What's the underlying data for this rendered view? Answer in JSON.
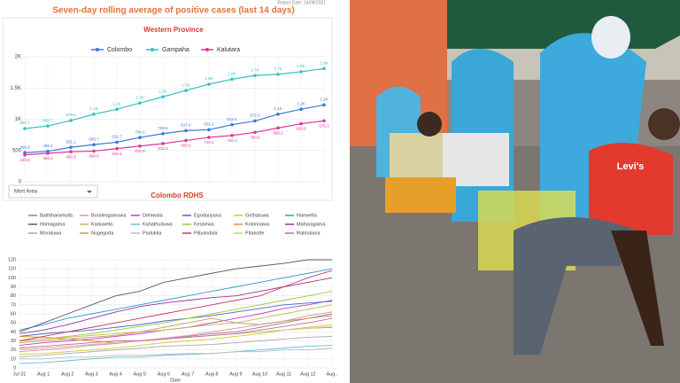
{
  "chart_data": [
    {
      "type": "line",
      "title": "Seven-day rolling average of positive cases (last 14 days)",
      "report_date": "Report Date: 14/08/2021",
      "subtitle": "Western Province",
      "filter": "Mort Area",
      "ylim": [
        0,
        2000
      ],
      "yticks": [
        0,
        500,
        {
          "value": 1000,
          "label": "1K"
        },
        {
          "value": 1500,
          "label": "1.5K"
        },
        {
          "value": 2000,
          "label": "2K"
        }
      ],
      "grid": true,
      "legend": "top",
      "series": [
        {
          "name": "Colombo",
          "color": "#3b78d8",
          "values": [
            466.8,
            486.4,
            551.1,
            593.7,
            632.7,
            708.1,
            769.6,
            817.6,
            832.1,
            912.4,
            972.9,
            1080,
            1160,
            1230
          ],
          "value_labels": [
            "466.8",
            "486.4",
            "551.1",
            "593.7",
            "632.7",
            "708.1",
            "769.6",
            "817.6",
            "832.1",
            "912.4",
            "972.9",
            "1.1K",
            "1.2K",
            "1.2K"
          ]
        },
        {
          "name": "Gampaha",
          "color": "#33c3bd",
          "values": [
            850.7,
            892.7,
            979.6,
            1080,
            1160,
            1260,
            1360,
            1460,
            1560,
            1640,
            1700,
            1720,
            1760,
            1810
          ],
          "value_labels": [
            "850.7",
            "892.7",
            "979.6",
            "1.1K",
            "1.2K",
            "1.3K",
            "1.4K",
            "1.5K",
            "1.6K",
            "1.6K",
            "1.7K",
            "1.7K",
            "1.8K",
            "1.8K"
          ]
        },
        {
          "name": "Kalutara",
          "color": "#e0359b",
          "values": [
            430.8,
            455.2,
            480.3,
            490.6,
            530.4,
            570.9,
            610.2,
            660.5,
            710.1,
            740.3,
            790.6,
            860.2,
            928.6,
            975.3
          ],
          "value_labels": [
            "430.8",
            "455.2",
            "480.3",
            "490.6",
            "530.4",
            "570.9",
            "610.2",
            "660.5",
            "710.1",
            "740.3",
            "790.6",
            "860.2",
            "928.6",
            "975.3"
          ]
        }
      ]
    },
    {
      "type": "line",
      "title": "Colombo RDHS",
      "x_label": "Date",
      "legend": "top",
      "grid": true,
      "categories": [
        "Jul 31",
        "Aug 1",
        "Aug 2",
        "Aug 3",
        "Aug 4",
        "Aug 5",
        "Aug 6",
        "Aug 7",
        "Aug 8",
        "Aug 9",
        "Aug 10",
        "Aug 11",
        "Aug 12",
        "Aug.."
      ],
      "ylim": [
        0,
        120
      ],
      "yticks": [
        0,
        10,
        20,
        30,
        40,
        50,
        60,
        70,
        80,
        90,
        100,
        110,
        120
      ],
      "series": [
        {
          "name": "Baththaramulla",
          "color": "#888888",
          "values": [
            20,
            22,
            24,
            26,
            28,
            30,
            32,
            35,
            38,
            40,
            45,
            50,
            55,
            60
          ]
        },
        {
          "name": "Boralesgamuwa",
          "color": "#e88aa8",
          "values": [
            18,
            20,
            22,
            25,
            27,
            30,
            33,
            36,
            40,
            44,
            48,
            52,
            58,
            62
          ]
        },
        {
          "name": "Dehiwala",
          "color": "#c63cc6",
          "values": [
            25,
            28,
            30,
            32,
            35,
            38,
            42,
            45,
            50,
            55,
            60,
            66,
            70,
            75
          ]
        },
        {
          "name": "Egodauyana",
          "color": "#4466cc",
          "values": [
            35,
            38,
            40,
            42,
            45,
            48,
            52,
            55,
            58,
            62,
            66,
            70,
            72,
            74
          ]
        },
        {
          "name": "Gothatuwa",
          "color": "#cccc33",
          "values": [
            15,
            16,
            18,
            20,
            22,
            25,
            28,
            30,
            32,
            35,
            38,
            42,
            45,
            48
          ]
        },
        {
          "name": "Hanwella",
          "color": "#3399cc",
          "values": [
            42,
            48,
            55,
            60,
            65,
            70,
            75,
            80,
            85,
            90,
            95,
            100,
            105,
            110
          ]
        },
        {
          "name": "Homagama",
          "color": "#555577",
          "values": [
            40,
            50,
            60,
            70,
            80,
            85,
            95,
            100,
            105,
            110,
            113,
            116,
            120,
            120
          ]
        },
        {
          "name": "Kaduwela",
          "color": "#bbbb55",
          "values": [
            30,
            32,
            34,
            36,
            38,
            40,
            42,
            45,
            48,
            50,
            55,
            60,
            65,
            70
          ]
        },
        {
          "name": "Kahathuduwa",
          "color": "#66bbdd",
          "values": [
            5,
            6,
            8,
            10,
            12,
            12,
            14,
            15,
            16,
            18,
            20,
            22,
            24,
            25
          ]
        },
        {
          "name": "Kesbewa",
          "color": "#99cc33",
          "values": [
            30,
            32,
            35,
            38,
            42,
            46,
            50,
            55,
            60,
            65,
            70,
            75,
            80,
            85
          ]
        },
        {
          "name": "Kolonnawa",
          "color": "#ee8833",
          "values": [
            35,
            34,
            32,
            30,
            28,
            30,
            32,
            34,
            36,
            38,
            40,
            42,
            44,
            45
          ]
        },
        {
          "name": "Maharagama",
          "color": "#993399",
          "values": [
            38,
            42,
            48,
            55,
            62,
            68,
            72,
            75,
            78,
            80,
            85,
            90,
            95,
            100
          ]
        },
        {
          "name": "Moratuwa",
          "color": "#aaaaaa",
          "values": [
            12,
            14,
            16,
            18,
            20,
            22,
            24,
            25,
            26,
            28,
            30,
            32,
            34,
            35
          ]
        },
        {
          "name": "Nugegoda",
          "color": "#cc9966",
          "values": [
            28,
            30,
            32,
            34,
            36,
            40,
            45,
            50,
            55,
            50,
            48,
            52,
            55,
            58
          ]
        },
        {
          "name": "Padukka",
          "color": "#bbbbbb",
          "values": [
            10,
            10,
            12,
            12,
            14,
            14,
            15,
            16,
            16,
            18,
            18,
            20,
            20,
            22
          ]
        },
        {
          "name": "Piliyandala",
          "color": "#cc3366",
          "values": [
            30,
            35,
            40,
            45,
            50,
            55,
            60,
            65,
            70,
            75,
            80,
            90,
            100,
            108
          ]
        },
        {
          "name": "Pitakotte",
          "color": "#cccc99",
          "values": [
            20,
            22,
            24,
            26,
            28,
            30,
            32,
            34,
            36,
            38,
            40,
            42,
            44,
            46
          ]
        },
        {
          "name": "Ratmalana",
          "color": "#cc6699",
          "values": [
            22,
            24,
            26,
            28,
            30,
            30,
            32,
            34,
            36,
            38,
            42,
            46,
            50,
            55
          ]
        }
      ]
    }
  ],
  "photo_text": "Levi's"
}
